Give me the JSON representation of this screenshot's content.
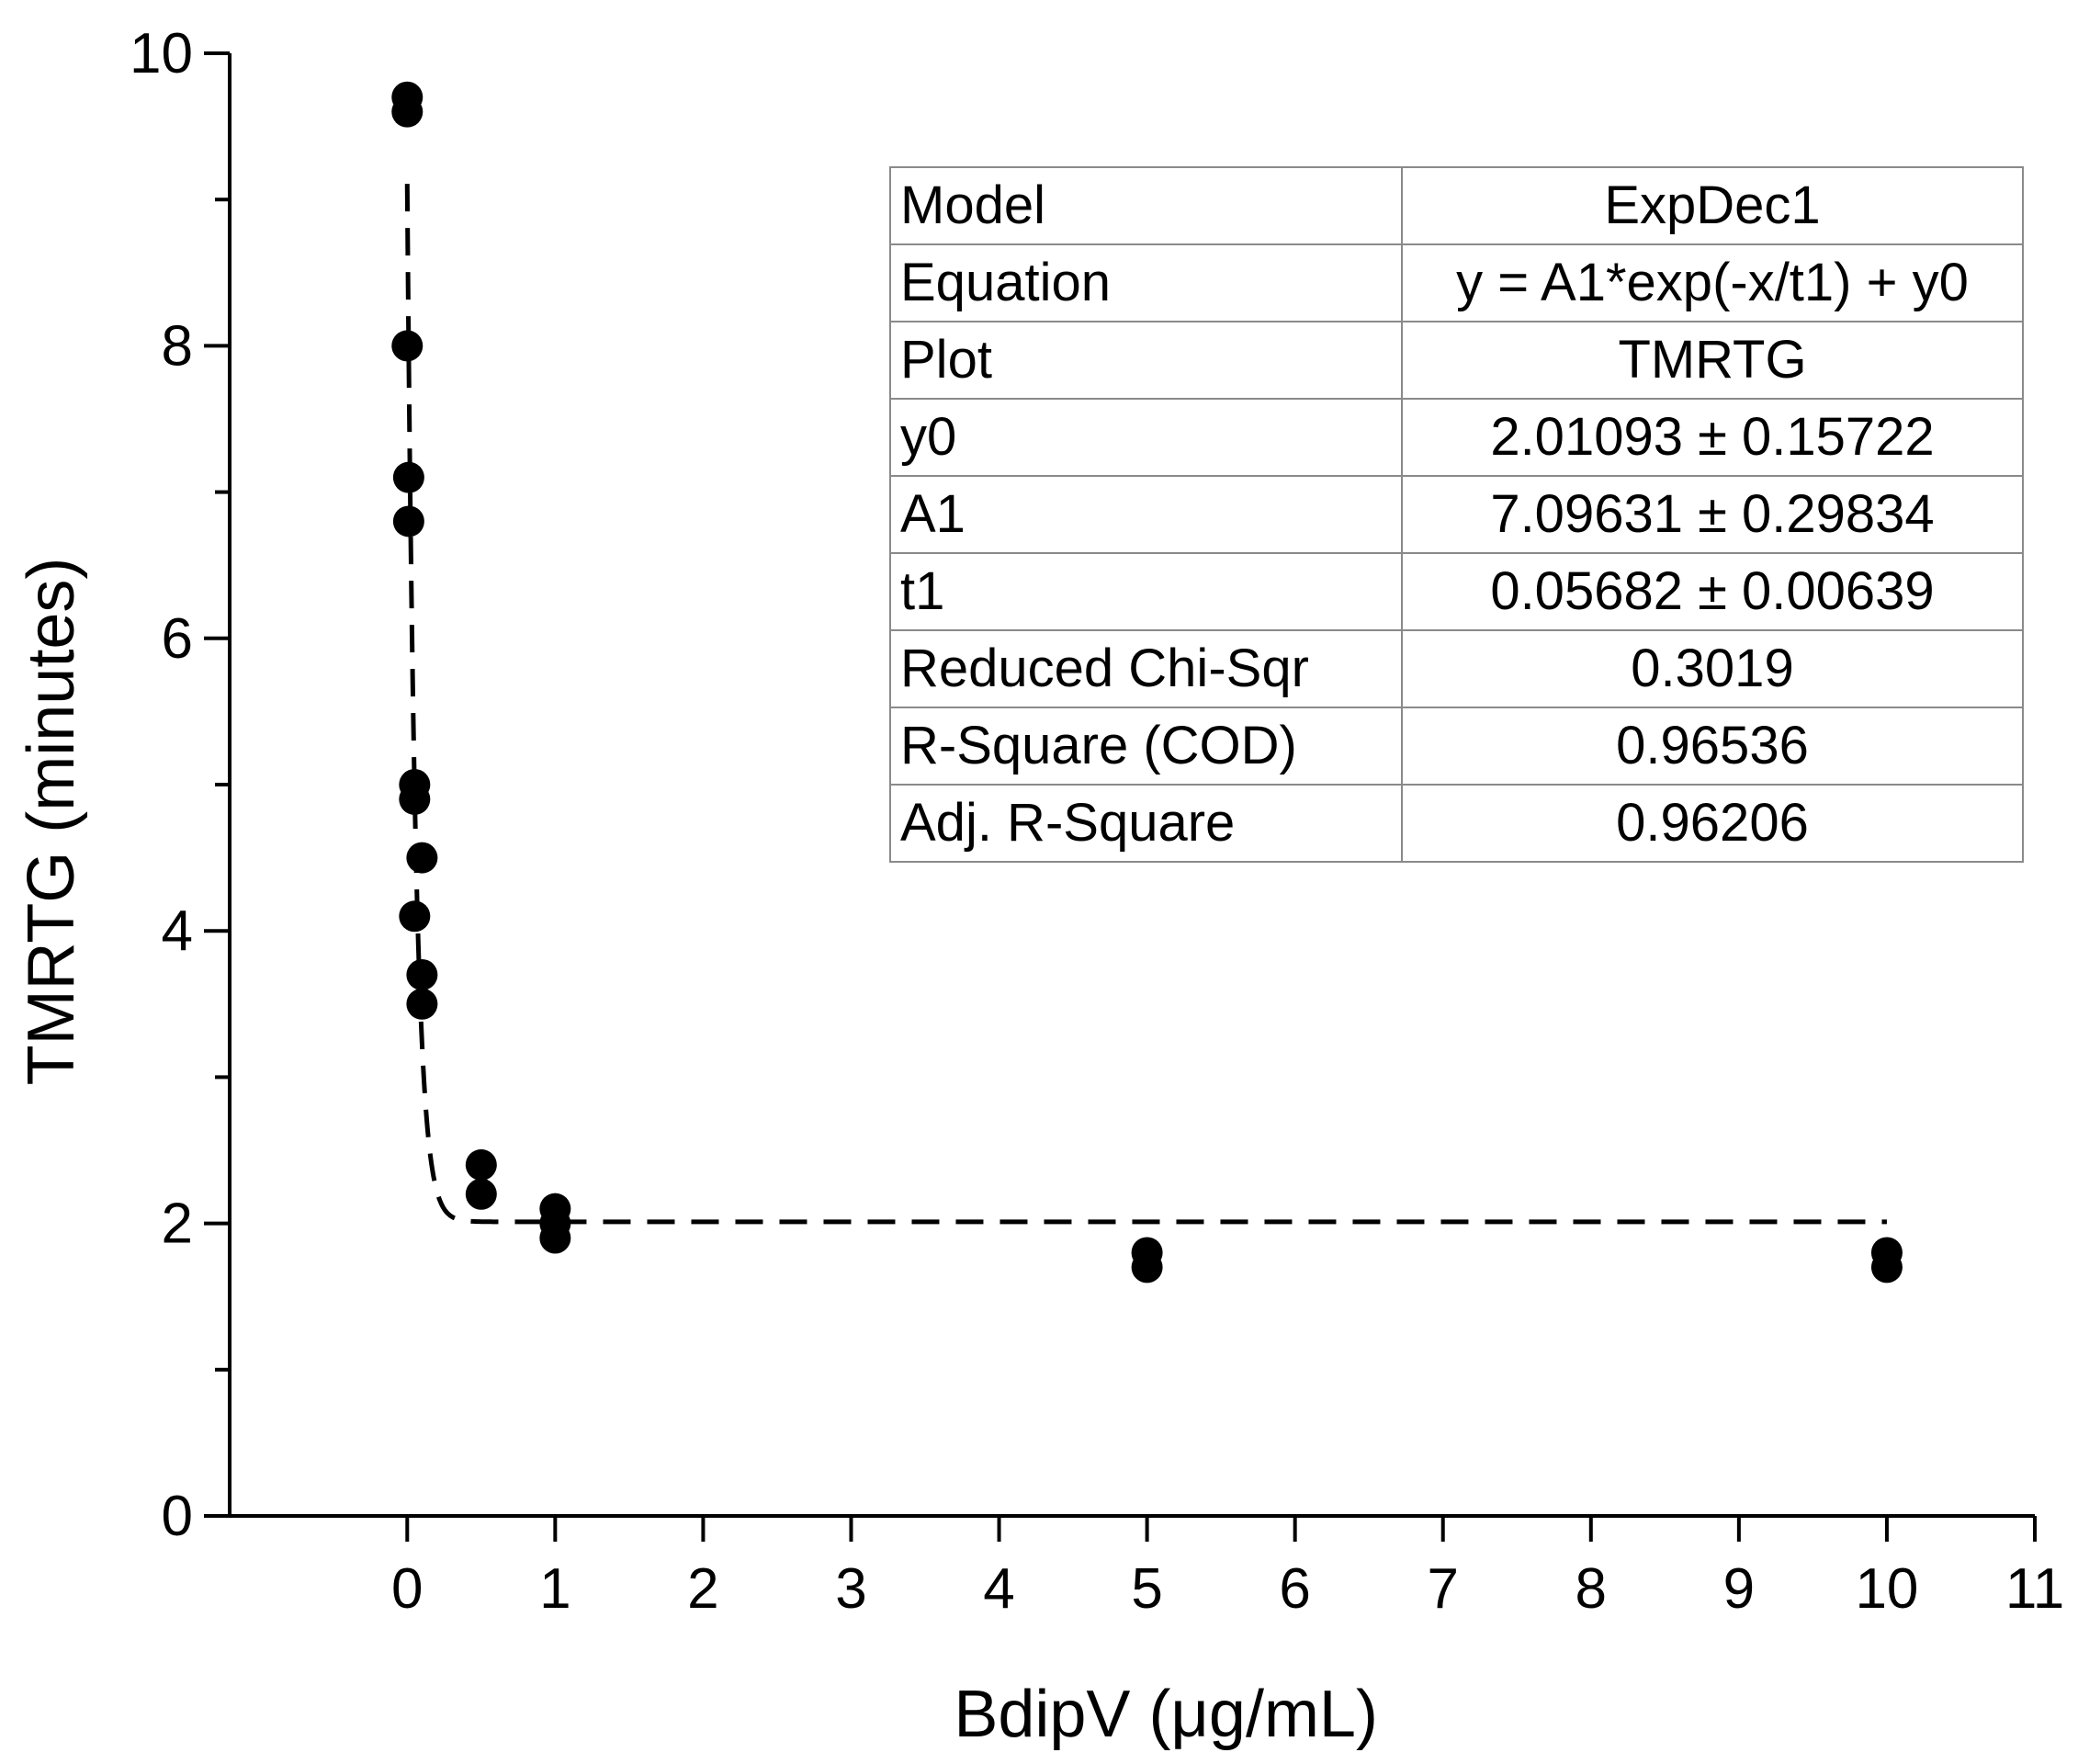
{
  "chart_data": {
    "type": "scatter",
    "xlabel": "BdipV (μg/mL)",
    "ylabel": "TMRTG (minutes)",
    "xlim": [
      -1.2,
      11
    ],
    "ylim": [
      0,
      10
    ],
    "xticks": [
      "0",
      "1",
      "2",
      "3",
      "4",
      "5",
      "6",
      "7",
      "8",
      "9",
      "10",
      "11"
    ],
    "yticks": [
      "0",
      "2",
      "4",
      "6",
      "8",
      "10"
    ],
    "series": [
      {
        "marker": "filled-circle",
        "color": "#000000",
        "points": [
          [
            0,
            9.7
          ],
          [
            0,
            9.6
          ],
          [
            0,
            8.0
          ],
          [
            0.01,
            7.1
          ],
          [
            0.01,
            6.8
          ],
          [
            0.05,
            5.0
          ],
          [
            0.05,
            4.9
          ],
          [
            0.1,
            4.5
          ],
          [
            0.05,
            4.1
          ],
          [
            0.1,
            3.7
          ],
          [
            0.1,
            3.5
          ],
          [
            0.5,
            2.4
          ],
          [
            0.5,
            2.2
          ],
          [
            1,
            2.1
          ],
          [
            1,
            2.0
          ],
          [
            1,
            1.9
          ],
          [
            5,
            1.8
          ],
          [
            5,
            1.7
          ],
          [
            10,
            1.8
          ],
          [
            10,
            1.7
          ]
        ]
      }
    ],
    "fit": {
      "style": "dashed",
      "color": "#000000",
      "x_range": [
        0,
        10
      ],
      "params": {
        "y0": 2.01093,
        "A1": 7.09631,
        "t1": 0.05682
      }
    },
    "grid": false,
    "legend": "none"
  },
  "fit_table": [
    {
      "key": "Model",
      "value": "ExpDec1"
    },
    {
      "key": "Equation",
      "value": "y = A1*exp(-x/t1) + y0"
    },
    {
      "key": "Plot",
      "value": "TMRTG"
    },
    {
      "key": "y0",
      "value": "2.01093 ± 0.15722"
    },
    {
      "key": "A1",
      "value": "7.09631 ± 0.29834"
    },
    {
      "key": "t1",
      "value": "0.05682 ± 0.00639"
    },
    {
      "key": "Reduced Chi-Sqr",
      "value": "0.3019"
    },
    {
      "key": "R-Square (COD)",
      "value": "0.96536"
    },
    {
      "key": "Adj. R-Square",
      "value": "0.96206"
    }
  ]
}
